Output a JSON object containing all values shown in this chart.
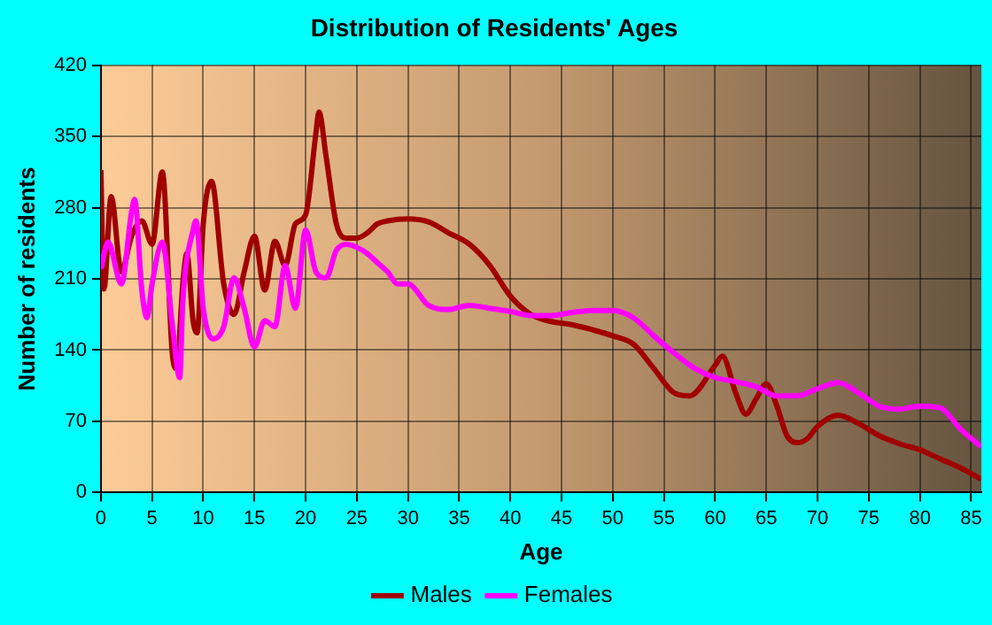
{
  "chart_data": {
    "type": "line",
    "title": "Distribution of Residents' Ages",
    "xlabel": "Age",
    "ylabel": "Number of residents",
    "xlim": [
      0,
      86
    ],
    "xticks": [
      0,
      5,
      10,
      15,
      20,
      25,
      30,
      35,
      40,
      45,
      50,
      55,
      60,
      65,
      70,
      75,
      80,
      85
    ],
    "ylim": [
      0,
      420
    ],
    "yticks": [
      0,
      70,
      140,
      210,
      280,
      350,
      420
    ],
    "grid": true,
    "legend": "bottom",
    "marker": "none",
    "line_style": "solid",
    "series": [
      {
        "name": "Males",
        "color": "#a00000",
        "x": [
          0,
          0.3,
          1,
          2,
          3,
          4,
          5,
          6,
          7,
          7.4,
          8,
          8.4,
          9,
          9.4,
          10,
          10.8,
          12,
          13,
          14,
          15,
          16,
          17,
          18,
          19,
          20,
          21,
          21.3,
          22,
          23,
          24,
          25,
          26,
          27,
          28,
          30,
          32,
          34,
          36,
          38,
          40,
          42,
          44,
          46,
          48,
          50,
          52,
          54,
          56,
          57.5,
          60,
          60.7,
          62,
          63,
          64,
          65,
          66,
          67,
          68,
          69,
          70,
          72,
          74,
          76,
          78,
          80,
          82,
          84,
          86
        ],
        "values": [
          317,
          200,
          291,
          217,
          252,
          267,
          244,
          315,
          134,
          122,
          205,
          235,
          169,
          157,
          264,
          306,
          205,
          175,
          217,
          252,
          199,
          247,
          223,
          264,
          273,
          353,
          374,
          330,
          264,
          250,
          250,
          255,
          264,
          267,
          269,
          266,
          255,
          244,
          223,
          193,
          175,
          168,
          165,
          160,
          154,
          146,
          122,
          98,
          95,
          125,
          134,
          98,
          77,
          92,
          107,
          86,
          56,
          49,
          53,
          65,
          76,
          68,
          56,
          48,
          42,
          33,
          24,
          13
        ]
      },
      {
        "name": "Females",
        "color": "#ff00ff",
        "x": [
          0,
          0.7,
          2,
          3,
          3.3,
          4,
          4.5,
          5,
          6,
          7,
          7.7,
          8,
          9,
          9.3,
          10,
          11,
          12,
          13,
          14,
          15,
          16,
          17,
          18,
          19,
          20,
          21,
          22,
          23,
          24,
          25,
          26,
          27,
          28,
          29,
          30,
          32,
          34,
          36,
          38,
          40,
          42,
          44,
          46,
          48,
          50,
          52,
          54,
          56,
          58,
          60,
          62,
          64,
          66,
          68,
          70,
          72,
          74,
          76,
          78,
          80,
          82,
          84,
          86
        ],
        "values": [
          220,
          246,
          205,
          276,
          288,
          199,
          172,
          205,
          246,
          163,
          113,
          187,
          258,
          267,
          181,
          151,
          163,
          211,
          181,
          143,
          169,
          163,
          223,
          181,
          258,
          217,
          211,
          238,
          244,
          241,
          235,
          226,
          217,
          205,
          205,
          184,
          180,
          184,
          181,
          178,
          174,
          174,
          177,
          179,
          179,
          172,
          154,
          137,
          122,
          113,
          109,
          104,
          95,
          95,
          102,
          108,
          98,
          85,
          82,
          85,
          83,
          62,
          45
        ]
      }
    ]
  }
}
